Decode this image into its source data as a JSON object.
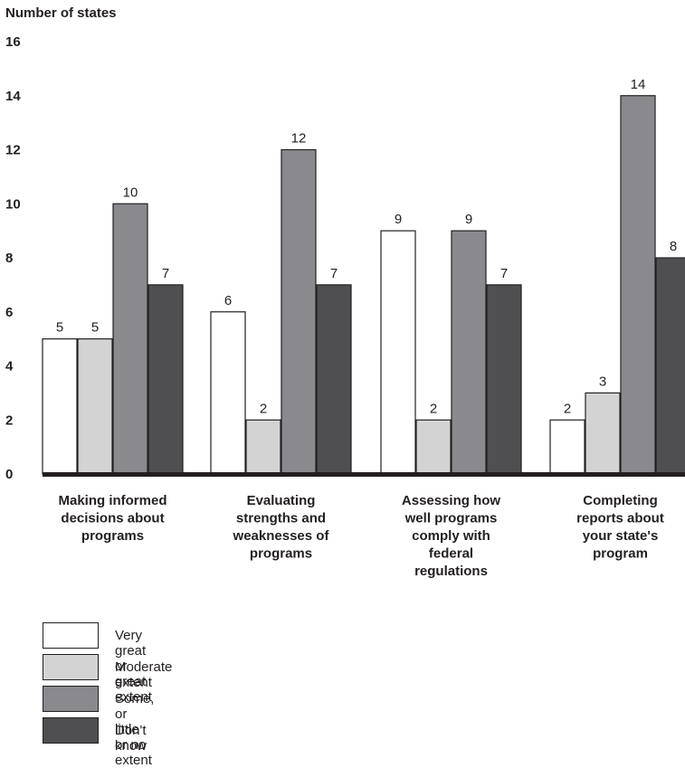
{
  "chart_data": {
    "type": "bar",
    "ylabel": "Number of states",
    "ylim": [
      0,
      16
    ],
    "yticks": [
      "0",
      "2",
      "4",
      "6",
      "8",
      "10",
      "12",
      "14",
      "16"
    ],
    "grid": false,
    "legend_position": "bottom",
    "categories": [
      [
        "Making informed",
        "decisions about",
        "programs"
      ],
      [
        "Evaluating",
        "strengths and",
        "weaknesses of",
        "programs"
      ],
      [
        "Assessing how",
        "well programs",
        "comply with",
        "federal",
        "regulations"
      ],
      [
        "Completing",
        "reports about",
        "your state's",
        "program"
      ]
    ],
    "series": [
      {
        "name": "Very great or great extent",
        "color": "#ffffff",
        "values": [
          5,
          6,
          9,
          2
        ]
      },
      {
        "name": "Moderate extent",
        "color": "#d3d3d3",
        "values": [
          5,
          2,
          2,
          3
        ]
      },
      {
        "name": "Some, or little or no extent",
        "color": "#8a8a8e",
        "values": [
          10,
          12,
          9,
          14
        ]
      },
      {
        "name": "Don't know",
        "color": "#4f4f51",
        "values": [
          7,
          7,
          7,
          8
        ]
      }
    ]
  }
}
